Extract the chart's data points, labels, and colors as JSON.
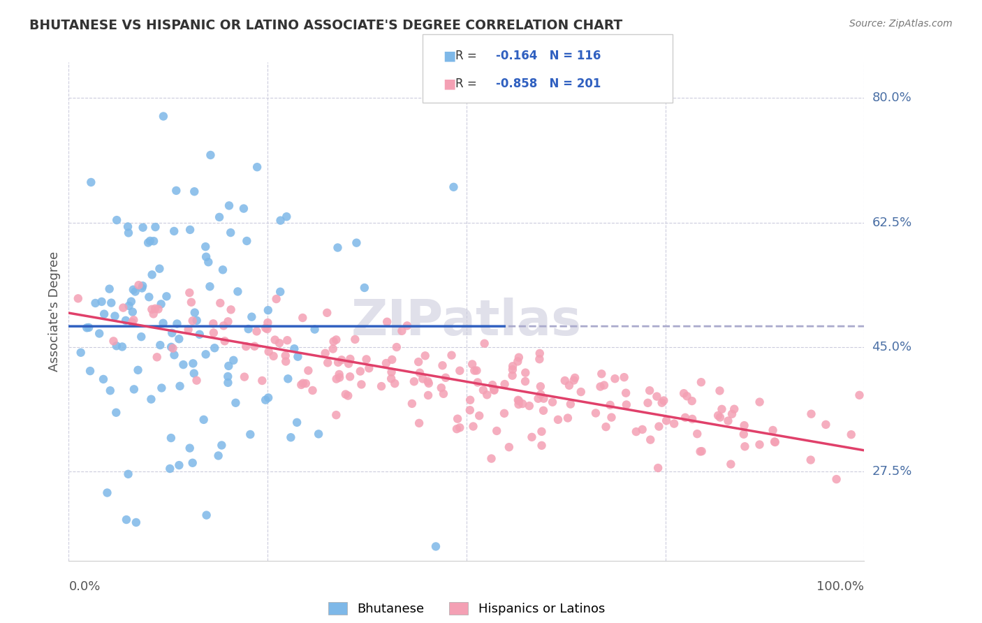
{
  "title": "BHUTANESE VS HISPANIC OR LATINO ASSOCIATE'S DEGREE CORRELATION CHART",
  "source": "Source: ZipAtlas.com",
  "ylabel": "Associate's Degree",
  "ytick_labels": [
    "27.5%",
    "45.0%",
    "62.5%",
    "80.0%"
  ],
  "ytick_values": [
    0.275,
    0.45,
    0.625,
    0.8
  ],
  "blue_R": -0.164,
  "blue_N": 116,
  "pink_R": -0.858,
  "pink_N": 201,
  "blue_color": "#7eb8e8",
  "pink_color": "#f4a0b4",
  "trend_blue": "#3060c0",
  "trend_pink": "#e0406a",
  "trend_blue_dashed": "#aaaacc",
  "watermark": "ZIPatlas",
  "background": "#ffffff",
  "grid_color": "#ccccdd",
  "xlim": [
    0.0,
    1.0
  ],
  "ylim": [
    0.15,
    0.85
  ],
  "blue_seed": 42,
  "pink_seed": 7,
  "right_label_color": "#4a6fa5",
  "legend_labels": [
    "Bhutanese",
    "Hispanics or Latinos"
  ]
}
